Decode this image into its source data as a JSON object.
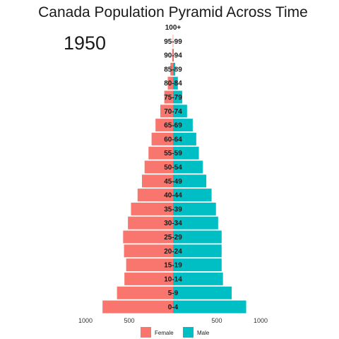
{
  "chart_data": {
    "type": "bar",
    "orientation": "horizontal-pyramid",
    "title": "Canada Population Pyramid Across Time",
    "annotation": "1950",
    "categories": [
      "0-4",
      "5-9",
      "10-14",
      "15-19",
      "20-24",
      "25-29",
      "30-34",
      "35-39",
      "40-44",
      "45-49",
      "50-54",
      "55-59",
      "60-64",
      "65-69",
      "70-74",
      "75-79",
      "80-84",
      "85-89",
      "90-94",
      "95-99",
      "100+"
    ],
    "series": [
      {
        "name": "Female",
        "color": "#F8766D",
        "values": [
          805,
          640,
          555,
          535,
          560,
          570,
          515,
          480,
          405,
          355,
          325,
          280,
          245,
          200,
          145,
          100,
          60,
          30,
          10,
          3,
          0
        ]
      },
      {
        "name": "Male",
        "color": "#00BFC4",
        "values": [
          835,
          670,
          570,
          555,
          555,
          555,
          515,
          490,
          440,
          380,
          340,
          295,
          265,
          225,
          160,
          105,
          55,
          25,
          8,
          2,
          0
        ]
      }
    ],
    "x_ticks": [
      {
        "label": "1000",
        "value": -1000
      },
      {
        "label": "500",
        "value": -500
      },
      {
        "label": "500",
        "value": 500
      },
      {
        "label": "1000",
        "value": 1000
      }
    ],
    "xlim": [
      -1000,
      1000
    ],
    "grid": false,
    "legend": {
      "placement": "bottom",
      "items": [
        {
          "label": "Female",
          "color": "#F8766D"
        },
        {
          "label": "Male",
          "color": "#00BFC4"
        }
      ]
    }
  }
}
